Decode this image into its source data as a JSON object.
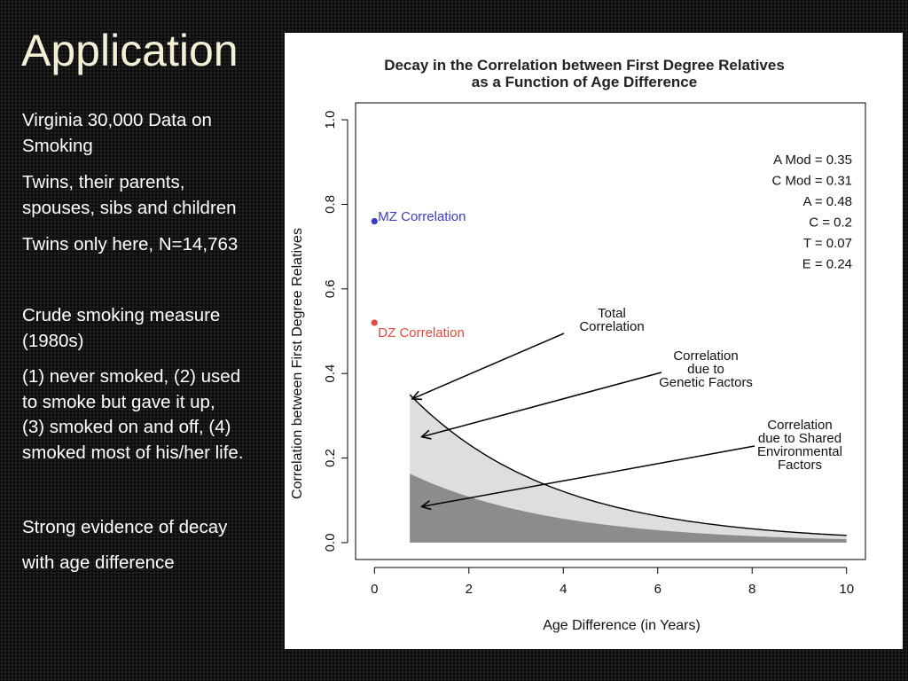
{
  "slide": {
    "title": "Application",
    "bullets": [
      "Virginia 30,000 Data on\nSmoking",
      "Twins, their parents,\nspouses, sibs and children",
      "Twins only here, N=14,763",
      "Crude smoking measure\n(1980s)",
      "(1) never smoked, (2) used\nto smoke but gave it up,\n(3) smoked on and off, (4)\nsmoked most of his/her life.",
      "Strong evidence of decay",
      "with age difference"
    ]
  },
  "chart_data": {
    "type": "area",
    "title": [
      "Decay in the Correlation between First Degree Relatives",
      "as a Function of Age Difference"
    ],
    "xlabel": "Age Difference (in Years)",
    "ylabel": "Correlation between First Degree Relatives",
    "xlim": [
      -0.4,
      10.4
    ],
    "ylim": [
      -0.04,
      1.04
    ],
    "x_ticks": [
      "0",
      "2",
      "4",
      "6",
      "8",
      "10"
    ],
    "y_ticks": [
      "0.0",
      "0.2",
      "0.4",
      "0.6",
      "0.8",
      "1.0"
    ],
    "grid": false,
    "curves": {
      "x_start": 0.75,
      "x_end": 10,
      "total_at_start": 0.35,
      "total_at_end": 0.017,
      "shared_at_start": 0.163,
      "shared_at_end": 0.008
    },
    "points": [
      {
        "label": "MZ Correlation",
        "x": 0,
        "y": 0.76,
        "color": "#3b3bc9"
      },
      {
        "label": "DZ Correlation",
        "x": 0,
        "y": 0.52,
        "color": "#e24b3b"
      }
    ],
    "parameters": [
      "A Mod = 0.35",
      "C Mod = 0.31",
      "A = 0.48",
      "C = 0.2",
      "T = 0.07",
      "E = 0.24"
    ],
    "annotations": [
      {
        "lines": [
          "Total",
          "Correlation"
        ],
        "target": {
          "x": 0.8,
          "y": 0.34
        }
      },
      {
        "lines": [
          "Correlation",
          "due to",
          "Genetic Factors"
        ],
        "target": {
          "x": 1.0,
          "y": 0.25
        }
      },
      {
        "lines": [
          "Correlation",
          "due to Shared",
          "Environmental",
          "Factors"
        ],
        "target": {
          "x": 1.0,
          "y": 0.085
        }
      }
    ],
    "colors": {
      "shared_fill": "#8c8c8c",
      "genetic_fill": "#dedede",
      "curve_line": "#000000"
    }
  }
}
